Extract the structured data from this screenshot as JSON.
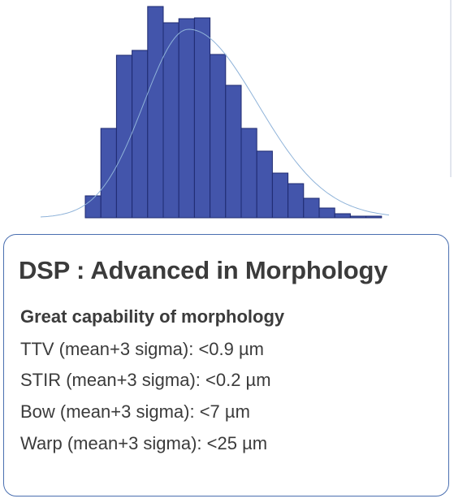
{
  "chart_data": {
    "type": "bar",
    "title": "",
    "xlabel": "",
    "ylabel": "",
    "values": [
      27,
      110,
      200,
      206,
      260,
      240,
      245,
      246,
      201,
      163,
      110,
      82,
      55,
      42,
      24,
      12,
      5,
      2,
      2
    ],
    "ylim": [
      0,
      262
    ],
    "curve": true,
    "bar_color": "#4355ab",
    "curve_color": "#8fb3d9"
  },
  "card": {
    "title": "DSP : Advanced in Morphology",
    "subtitle": "Great capability of morphology",
    "specs": [
      "TTV (mean+3 sigma): <0.9 µm",
      "STIR (mean+3 sigma): <0.2 µm",
      "Bow (mean+3 sigma): <7 µm",
      "Warp (mean+3 sigma): <25 µm"
    ],
    "border_color": "#4a6fb0",
    "text_color": "#3b3b3b"
  }
}
